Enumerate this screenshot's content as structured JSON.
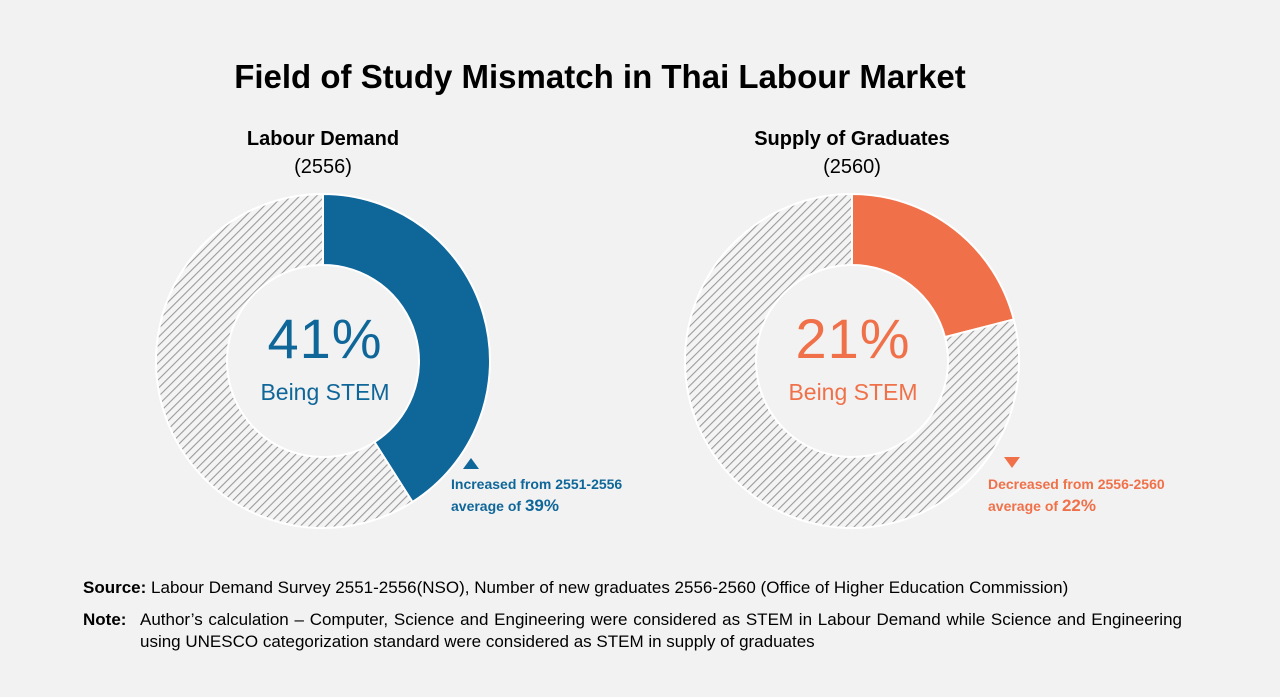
{
  "title": "Field of Study Mismatch in Thai Labour Market",
  "chart_data": [
    {
      "type": "pie",
      "title": "Labour Demand",
      "subtitle": "(2556)",
      "values": [
        41,
        59
      ],
      "highlight_label": "41%",
      "highlight_caption": "Being STEM",
      "annotation_line1": "Increased from 2551-2556",
      "annotation_line2_prefix": "average of ",
      "annotation_value": "39%",
      "trend": "up",
      "color": "#0f6699"
    },
    {
      "type": "pie",
      "title": "Supply of Graduates",
      "subtitle": "(2560)",
      "values": [
        21,
        79
      ],
      "highlight_label": "21%",
      "highlight_caption": "Being STEM",
      "annotation_line1": "Decreased from 2556-2560",
      "annotation_line2_prefix": "average of ",
      "annotation_value": "22%",
      "trend": "down",
      "color": "#f07149"
    }
  ],
  "source_label": "Source:",
  "source_text": "Labour Demand Survey 2551-2556(NSO), Number of new graduates 2556-2560 (Office of Higher Education Commission)",
  "note_label": "Note:",
  "note_text": "Author’s calculation – Computer, Science and Engineering were considered as STEM in Labour Demand while Science and Engineering using UNESCO categorization standard were considered as STEM in supply of graduates"
}
